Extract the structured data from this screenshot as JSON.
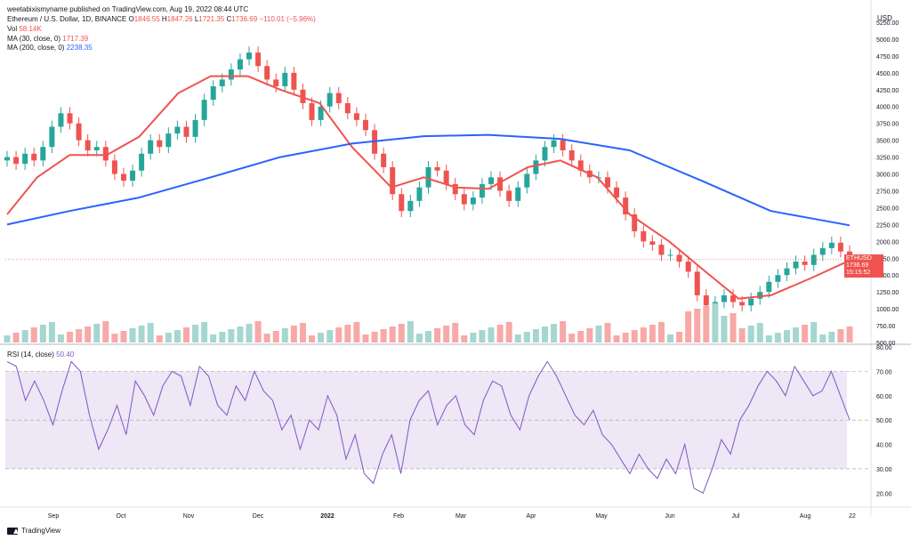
{
  "header": {
    "username": "weetabixismyname published on TradingView.com, Aug 19, 2022 08:44 UTC",
    "symbol_line": "Ethereum / U.S. Dollar, 1D, BINANCE",
    "ohlc": {
      "o_label": "O",
      "o": "1846.55",
      "h_label": "H",
      "h": "1847.26",
      "l_label": "L",
      "l": "1721.35",
      "c_label": "C",
      "c": "1736.69",
      "change": "−110.01 (−5.96%)"
    },
    "vol_label": "Vol",
    "vol_value": "58.14K",
    "ma30_label": "MA (30, close, 0)",
    "ma30_value": "1717.39",
    "ma200_label": "MA (200, close, 0)",
    "ma200_value": "2238.35",
    "rsi_label": "RSI (14, close)",
    "rsi_value": "50.40"
  },
  "price_tag": {
    "ticker": "ETHUSD",
    "price": "1736.69",
    "countdown": "15:15:52"
  },
  "currency": "USD",
  "footer": {
    "brand": "TradingView"
  },
  "colors": {
    "up": "#26a69a",
    "down": "#ef5350",
    "vol_up": "#a5d6d0",
    "vol_down": "#f7a9a7",
    "ma30": "#ef5350",
    "ma200": "#2962ff",
    "rsi": "#7e57c2",
    "rsi_band": "#ede7f6"
  },
  "chart_data": [
    {
      "type": "candlestick",
      "title": "Ethereum / U.S. Dollar, 1D, BINANCE",
      "y_axis_ticks": [
        "5250.00",
        "5000.00",
        "4750.00",
        "4500.00",
        "4250.00",
        "4000.00",
        "3750.00",
        "3500.00",
        "3250.00",
        "3000.00",
        "2750.00",
        "2500.00",
        "2250.00",
        "2000.00",
        "1750.00",
        "1500.00",
        "1250.00",
        "1000.00",
        "750.00",
        "500.00"
      ],
      "x_axis_ticks": [
        "Sep",
        "Oct",
        "Nov",
        "Dec",
        "2022",
        "Feb",
        "Mar",
        "Apr",
        "May",
        "Jun",
        "Jul",
        "Aug",
        "22"
      ],
      "ylim": [
        500,
        5250
      ],
      "series": [
        {
          "name": "MA (30, close, 0)",
          "points": [
            [
              "2021-08-19",
              2400
            ],
            [
              "2021-09-01",
              2950
            ],
            [
              "2021-09-15",
              3280
            ],
            [
              "2021-10-01",
              3280
            ],
            [
              "2021-10-15",
              3550
            ],
            [
              "2021-11-01",
              4200
            ],
            [
              "2021-11-15",
              4450
            ],
            [
              "2021-12-01",
              4450
            ],
            [
              "2021-12-15",
              4250
            ],
            [
              "2022-01-01",
              4050
            ],
            [
              "2022-01-15",
              3400
            ],
            [
              "2022-02-01",
              2800
            ],
            [
              "2022-02-15",
              2950
            ],
            [
              "2022-03-01",
              2800
            ],
            [
              "2022-03-15",
              2780
            ],
            [
              "2022-04-01",
              3100
            ],
            [
              "2022-04-15",
              3200
            ],
            [
              "2022-05-01",
              2950
            ],
            [
              "2022-05-15",
              2400
            ],
            [
              "2022-06-01",
              2000
            ],
            [
              "2022-06-15",
              1600
            ],
            [
              "2022-07-01",
              1150
            ],
            [
              "2022-07-15",
              1200
            ],
            [
              "2022-08-01",
              1450
            ],
            [
              "2022-08-18",
              1717
            ]
          ]
        },
        {
          "name": "MA (200, close, 0)",
          "points": [
            [
              "2021-08-19",
              2250
            ],
            [
              "2021-09-15",
              2450
            ],
            [
              "2021-10-15",
              2650
            ],
            [
              "2021-11-15",
              2950
            ],
            [
              "2021-12-15",
              3250
            ],
            [
              "2022-01-15",
              3450
            ],
            [
              "2022-02-15",
              3560
            ],
            [
              "2022-03-15",
              3580
            ],
            [
              "2022-04-15",
              3520
            ],
            [
              "2022-05-15",
              3350
            ],
            [
              "2022-06-15",
              2900
            ],
            [
              "2022-07-15",
              2450
            ],
            [
              "2022-08-18",
              2238
            ]
          ]
        }
      ],
      "candles": [
        [
          3200,
          3250
        ],
        [
          3250,
          3150
        ],
        [
          3150,
          3300
        ],
        [
          3300,
          3200
        ],
        [
          3200,
          3400
        ],
        [
          3400,
          3700
        ],
        [
          3700,
          3900
        ],
        [
          3900,
          3750
        ],
        [
          3750,
          3500
        ],
        [
          3500,
          3350
        ],
        [
          3350,
          3400
        ],
        [
          3400,
          3200
        ],
        [
          3200,
          3000
        ],
        [
          3000,
          2900
        ],
        [
          2900,
          3050
        ],
        [
          3050,
          3300
        ],
        [
          3300,
          3500
        ],
        [
          3500,
          3400
        ],
        [
          3400,
          3600
        ],
        [
          3600,
          3700
        ],
        [
          3700,
          3550
        ],
        [
          3550,
          3800
        ],
        [
          3800,
          4100
        ],
        [
          4100,
          4300
        ],
        [
          4300,
          4400
        ],
        [
          4400,
          4550
        ],
        [
          4550,
          4700
        ],
        [
          4700,
          4800
        ],
        [
          4800,
          4600
        ],
        [
          4600,
          4400
        ],
        [
          4400,
          4300
        ],
        [
          4300,
          4500
        ],
        [
          4500,
          4250
        ],
        [
          4250,
          4050
        ],
        [
          4050,
          3800
        ],
        [
          3800,
          4000
        ],
        [
          4000,
          4200
        ],
        [
          4200,
          4050
        ],
        [
          4050,
          3900
        ],
        [
          3900,
          3800
        ],
        [
          3800,
          3650
        ],
        [
          3650,
          3300
        ],
        [
          3300,
          3100
        ],
        [
          3100,
          2700
        ],
        [
          2700,
          2450
        ],
        [
          2450,
          2600
        ],
        [
          2600,
          2800
        ],
        [
          2800,
          3100
        ],
        [
          3100,
          3050
        ],
        [
          3050,
          2850
        ],
        [
          2850,
          2700
        ],
        [
          2700,
          2550
        ],
        [
          2550,
          2650
        ],
        [
          2650,
          2850
        ],
        [
          2850,
          2950
        ],
        [
          2950,
          2750
        ],
        [
          2750,
          2600
        ],
        [
          2600,
          2800
        ],
        [
          2800,
          3000
        ],
        [
          3000,
          3200
        ],
        [
          3200,
          3400
        ],
        [
          3400,
          3500
        ],
        [
          3500,
          3350
        ],
        [
          3350,
          3200
        ],
        [
          3200,
          3050
        ],
        [
          3050,
          2950
        ],
        [
          2950,
          2950
        ],
        [
          2950,
          2800
        ],
        [
          2800,
          2650
        ],
        [
          2650,
          2400
        ],
        [
          2400,
          2150
        ],
        [
          2150,
          2000
        ],
        [
          2000,
          1950
        ],
        [
          1950,
          1800
        ],
        [
          1800,
          1800
        ],
        [
          1800,
          1700
        ],
        [
          1700,
          1550
        ],
        [
          1550,
          1200
        ],
        [
          1200,
          1050
        ],
        [
          1050,
          1100
        ],
        [
          1100,
          1200
        ],
        [
          1200,
          1100
        ],
        [
          1100,
          1050
        ],
        [
          1050,
          1150
        ],
        [
          1150,
          1250
        ],
        [
          1250,
          1400
        ],
        [
          1400,
          1500
        ],
        [
          1500,
          1600
        ],
        [
          1600,
          1700
        ],
        [
          1700,
          1650
        ],
        [
          1650,
          1800
        ],
        [
          1800,
          1900
        ],
        [
          1900,
          1980
        ],
        [
          1980,
          1850
        ],
        [
          1850,
          1737
        ]
      ],
      "volume_scale": "relative"
    },
    {
      "type": "line",
      "title": "RSI (14, close)",
      "y_axis_ticks": [
        "80.00",
        "70.00",
        "60.00",
        "50.00",
        "40.00",
        "30.00",
        "20.00"
      ],
      "ylim": [
        15,
        80
      ],
      "band": [
        30,
        70
      ],
      "series": [
        {
          "name": "RSI (14, close)",
          "values": [
            74,
            72,
            58,
            66,
            58,
            48,
            62,
            74,
            70,
            52,
            38,
            46,
            56,
            44,
            66,
            60,
            52,
            64,
            70,
            68,
            56,
            72,
            68,
            56,
            52,
            64,
            58,
            70,
            62,
            58,
            46,
            52,
            38,
            50,
            46,
            60,
            52,
            34,
            44,
            28,
            24,
            36,
            44,
            28,
            50,
            58,
            62,
            48,
            56,
            60,
            48,
            44,
            58,
            66,
            64,
            52,
            46,
            60,
            68,
            74,
            68,
            60,
            52,
            48,
            54,
            44,
            40,
            34,
            28,
            36,
            30,
            26,
            34,
            28,
            40,
            22,
            20,
            30,
            42,
            36,
            50,
            56,
            64,
            70,
            66,
            60,
            72,
            66,
            60,
            62,
            70,
            60,
            50
          ]
        }
      ]
    }
  ]
}
